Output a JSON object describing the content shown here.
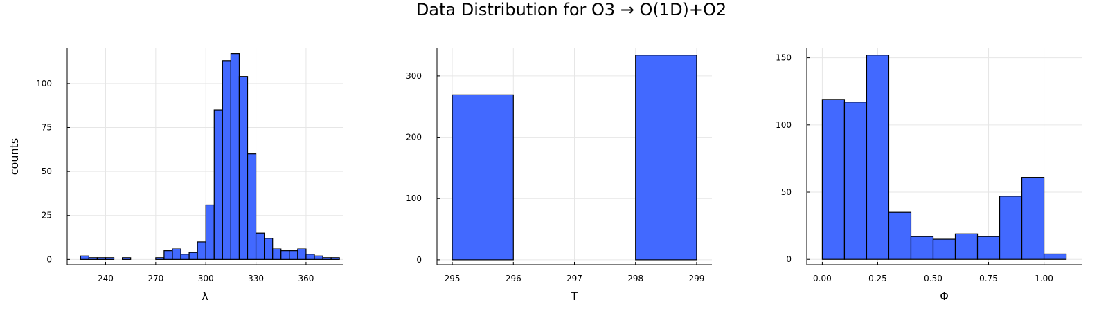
{
  "figure_title": "Data Distribution for O3 → O(1D)+O2",
  "bar_color": "#4269ff",
  "chart_data": [
    {
      "type": "bar",
      "title": "",
      "xlabel": "λ",
      "ylabel": "counts",
      "xlim": [
        217,
        382
      ],
      "ylim": [
        -3,
        120
      ],
      "xticks": [
        240,
        270,
        300,
        330,
        360
      ],
      "yticks": [
        0,
        25,
        50,
        75,
        100
      ],
      "bin_edges": [
        225,
        230,
        235,
        240,
        245,
        250,
        255,
        260,
        265,
        270,
        275,
        280,
        285,
        290,
        295,
        300,
        305,
        310,
        315,
        320,
        325,
        330,
        335,
        340,
        345,
        350,
        355,
        360,
        365,
        370,
        375,
        380
      ],
      "values": [
        2,
        1,
        1,
        1,
        0,
        1,
        0,
        0,
        0,
        1,
        5,
        6,
        3,
        4,
        10,
        31,
        85,
        113,
        117,
        104,
        60,
        15,
        12,
        6,
        5,
        5,
        6,
        3,
        2,
        1,
        1
      ]
    },
    {
      "type": "bar",
      "title": "",
      "xlabel": "T",
      "ylabel": "",
      "xlim": [
        294.75,
        299.25
      ],
      "ylim": [
        -8,
        345
      ],
      "xticks": [
        295,
        296,
        297,
        298,
        299
      ],
      "yticks": [
        0,
        100,
        200,
        300
      ],
      "bin_edges": [
        295,
        296,
        297,
        298,
        299
      ],
      "values": [
        269,
        0,
        0,
        334
      ]
    },
    {
      "type": "bar",
      "title": "",
      "xlabel": "Φ",
      "ylabel": "",
      "xlim": [
        -0.07,
        1.17
      ],
      "ylim": [
        -4,
        157
      ],
      "xticks": [
        0.0,
        0.25,
        0.5,
        0.75,
        1.0
      ],
      "xtick_labels": [
        "0.00",
        "0.25",
        "0.50",
        "0.75",
        "1.00"
      ],
      "yticks": [
        0,
        50,
        100,
        150
      ],
      "bin_edges": [
        0.0,
        0.1,
        0.2,
        0.3,
        0.4,
        0.5,
        0.6,
        0.7,
        0.8,
        0.9,
        1.0,
        1.1
      ],
      "values": [
        119,
        117,
        152,
        35,
        17,
        15,
        19,
        17,
        47,
        61,
        4
      ]
    }
  ]
}
